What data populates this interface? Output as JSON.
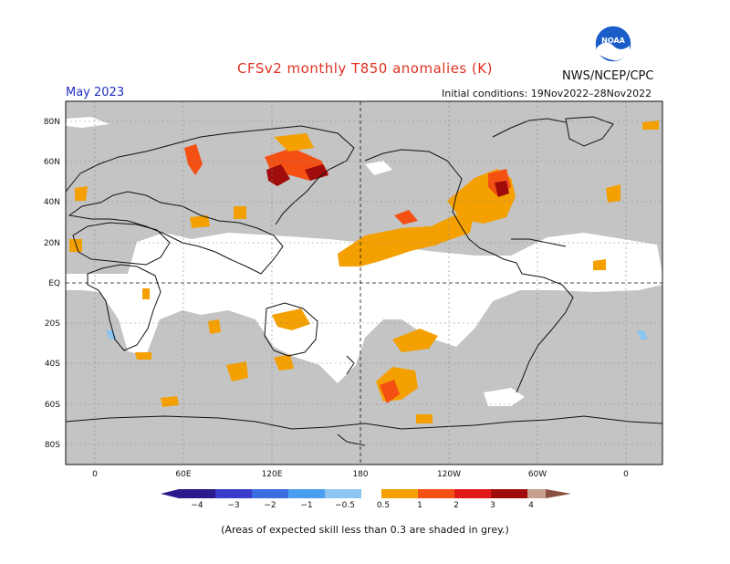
{
  "header": {
    "title": "CFSv2 monthly T850 anomalies (K)",
    "organization": "NWS/NCEP/CPC",
    "forecast_month": "May 2023",
    "initial_conditions": "Initial conditions: 19Nov2022–28Nov2022"
  },
  "logo": {
    "text": "NOAA"
  },
  "map": {
    "lat_labels": [
      "80N",
      "60N",
      "40N",
      "20N",
      "EQ",
      "20S",
      "40S",
      "60S",
      "80S"
    ],
    "lon_labels": [
      "0",
      "60E",
      "120E",
      "180",
      "120W",
      "60W",
      "0"
    ],
    "colors": {
      "no_skill_shading": "#c4c4c4",
      "land_outline": "#111111",
      "grid": "#888888"
    }
  },
  "colorbar": {
    "ticks": [
      "−4",
      "−3",
      "−2",
      "−1",
      "−0.5",
      "0.5",
      "1",
      "2",
      "3",
      "4"
    ],
    "colors": [
      "#2a1a8c",
      "#3c3ccc",
      "#3c6ee0",
      "#4a9ef0",
      "#8cc6f0",
      "#ffffff",
      "#f4a000",
      "#f45014",
      "#e01818",
      "#a00c0c",
      "#c8a090",
      "#8c5040"
    ]
  },
  "footnote": "(Areas of expected skill less than 0.3 are shaded in grey.)"
}
